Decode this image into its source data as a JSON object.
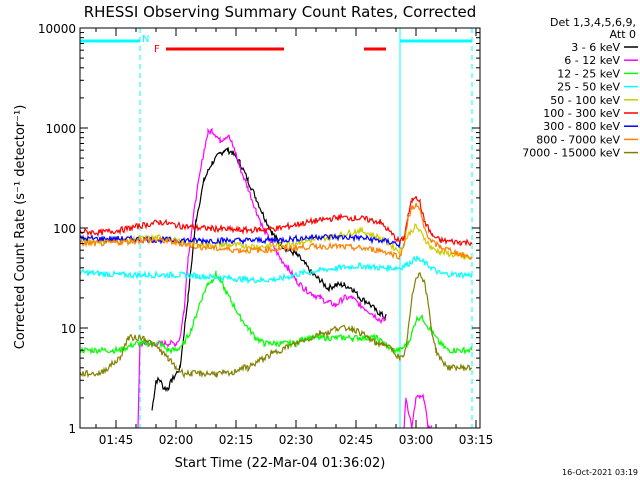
{
  "chart_data": {
    "type": "line",
    "title": "RHESSI Observing Summary Count Rates, Corrected",
    "xlabel": "Start Time (22-Mar-04 01:36:02)",
    "ylabel": "Corrected Count Rate (s⁻¹ detector⁻¹)",
    "ylog": true,
    "ylim": [
      1,
      10000
    ],
    "xlim_minutes": [
      0,
      100
    ],
    "x_unit": "minutes after 01:36:02",
    "xticks": [
      {
        "label": "01:45",
        "t": 9
      },
      {
        "label": "02:00",
        "t": 24
      },
      {
        "label": "02:15",
        "t": 39
      },
      {
        "label": "02:30",
        "t": 54
      },
      {
        "label": "02:45",
        "t": 69
      },
      {
        "label": "03:00",
        "t": 84
      },
      {
        "label": "03:15",
        "t": 99
      }
    ],
    "yticks": [
      {
        "label": "1",
        "v": 1
      },
      {
        "label": "10",
        "v": 10
      },
      {
        "label": "100",
        "v": 100
      },
      {
        "label": "1000",
        "v": 1000
      },
      {
        "label": "10000",
        "v": 10000
      }
    ],
    "legend": {
      "header": [
        "Det 1,3,4,5,6,9,",
        "Att 0"
      ],
      "placement": "right"
    },
    "series": [
      {
        "name": "3 - 6 keV",
        "color": "#000000",
        "x": [
          0,
          17,
          18,
          19,
          20,
          21,
          22,
          23,
          25,
          27,
          29,
          31,
          33,
          35,
          36,
          37,
          38,
          40,
          42,
          44,
          46,
          48,
          50,
          52,
          54,
          56,
          58,
          60,
          62,
          64,
          66,
          68,
          70,
          72,
          74,
          75,
          76,
          76.5
        ],
        "y": [
          null,
          null,
          1.5,
          3,
          3,
          2.5,
          2.5,
          3,
          4,
          20,
          120,
          300,
          450,
          550,
          600,
          600,
          570,
          450,
          300,
          200,
          130,
          90,
          70,
          60,
          55,
          45,
          35,
          30,
          25,
          27,
          27,
          25,
          20,
          18,
          15,
          14,
          13,
          13
        ]
      },
      {
        "name": "6 - 12 keV",
        "color": "#ff00ff",
        "x": [
          0,
          14,
          14.5,
          15,
          16,
          18,
          20,
          22,
          24,
          25,
          26,
          27,
          29,
          31,
          32,
          33,
          34,
          35,
          36,
          37,
          38,
          39,
          40,
          42,
          44,
          46,
          48,
          50,
          52,
          54,
          56,
          58,
          60,
          62,
          64,
          66,
          68,
          70,
          72,
          74,
          75,
          76,
          76.5,
          80,
          81,
          81.5,
          83,
          84,
          85,
          86,
          87,
          88,
          89,
          89.5
        ],
        "y": [
          null,
          null,
          1,
          7,
          7,
          7,
          7,
          7,
          7,
          8,
          15,
          50,
          200,
          600,
          900,
          950,
          850,
          750,
          800,
          850,
          700,
          550,
          400,
          250,
          150,
          95,
          70,
          50,
          40,
          30,
          25,
          22,
          20,
          18,
          17,
          20,
          20,
          17,
          15,
          13,
          12,
          12,
          12,
          null,
          1,
          2,
          1,
          2,
          2,
          2,
          1,
          1,
          null,
          null
        ]
      },
      {
        "name": "12 - 25 keV",
        "color": "#00ff00",
        "x": [
          0,
          5,
          10,
          14,
          16,
          18,
          20,
          22,
          24,
          26,
          28,
          30,
          32,
          33,
          34,
          35,
          36,
          38,
          40,
          42,
          44,
          46,
          48,
          50,
          52,
          54,
          56,
          58,
          60,
          62,
          64,
          66,
          68,
          70,
          72,
          74,
          76,
          78,
          80,
          82,
          83,
          84,
          85,
          86,
          88,
          90,
          92,
          94,
          96,
          98
        ],
        "y": [
          6,
          6,
          6,
          7,
          7,
          7,
          7,
          6,
          6,
          7,
          10,
          18,
          28,
          30,
          35,
          30,
          25,
          18,
          13,
          10,
          8,
          7,
          7,
          7,
          7,
          7,
          8,
          8,
          8,
          8,
          8,
          8,
          8,
          8,
          8,
          8,
          7,
          6,
          6,
          7,
          9,
          12,
          13,
          12,
          9,
          7,
          6,
          6,
          6,
          6
        ]
      },
      {
        "name": "25 - 50 keV",
        "color": "#00ffff",
        "x": [
          0,
          5,
          10,
          15,
          20,
          25,
          30,
          35,
          40,
          45,
          50,
          55,
          60,
          65,
          70,
          75,
          80,
          83,
          84,
          86,
          88,
          90,
          95,
          98
        ],
        "y": [
          36,
          35,
          34,
          34,
          34,
          34,
          33,
          32,
          31,
          30,
          31,
          35,
          38,
          40,
          42,
          40,
          40,
          46,
          50,
          45,
          40,
          35,
          34,
          34
        ]
      },
      {
        "name": "50 - 100 keV",
        "color": "#cccc00",
        "x": [
          0,
          5,
          10,
          15,
          20,
          25,
          30,
          35,
          40,
          45,
          50,
          55,
          60,
          65,
          70,
          75,
          80,
          82,
          84,
          86,
          88,
          90,
          95,
          98
        ],
        "y": [
          75,
          73,
          74,
          78,
          80,
          72,
          68,
          68,
          67,
          65,
          68,
          72,
          78,
          85,
          95,
          80,
          58,
          85,
          105,
          80,
          62,
          58,
          52,
          50
        ]
      },
      {
        "name": "100 - 300 keV",
        "color": "#ff0000",
        "x": [
          0,
          5,
          10,
          15,
          20,
          25,
          30,
          35,
          40,
          45,
          50,
          55,
          60,
          65,
          70,
          75,
          80,
          81,
          82,
          83,
          84,
          85,
          86,
          88,
          90,
          95,
          98
        ],
        "y": [
          92,
          90,
          95,
          105,
          115,
          105,
          100,
          98,
          95,
          96,
          100,
          110,
          120,
          128,
          125,
          115,
          72,
          80,
          130,
          190,
          215,
          180,
          120,
          85,
          75,
          72,
          72
        ]
      },
      {
        "name": "300 - 800 keV",
        "color": "#0000ff",
        "x": [
          0,
          10,
          20,
          30,
          40,
          50,
          60,
          70,
          78,
          80
        ],
        "y": [
          78,
          78,
          76,
          75,
          75,
          76,
          82,
          80,
          72,
          68
        ]
      },
      {
        "name": "800 - 7000 keV",
        "color": "#ff8000",
        "x": [
          0,
          5,
          10,
          15,
          20,
          25,
          30,
          35,
          40,
          45,
          50,
          55,
          60,
          65,
          70,
          75,
          80,
          81,
          82,
          83,
          84,
          85,
          86,
          88,
          90,
          95,
          98
        ],
        "y": [
          70,
          70,
          72,
          75,
          76,
          70,
          65,
          62,
          60,
          60,
          62,
          64,
          66,
          65,
          63,
          60,
          52,
          70,
          120,
          160,
          170,
          150,
          100,
          72,
          65,
          55,
          50
        ]
      },
      {
        "name": "7000 - 15000 keV",
        "color": "#808000",
        "x": [
          0,
          5,
          10,
          12,
          16,
          20,
          22,
          24,
          26,
          28,
          30,
          32,
          34,
          36,
          38,
          40,
          42,
          44,
          46,
          48,
          50,
          52,
          54,
          56,
          58,
          60,
          62,
          64,
          66,
          68,
          70,
          72,
          74,
          76,
          78,
          80,
          81,
          82,
          83,
          84,
          85,
          86,
          87,
          88,
          89,
          90,
          92,
          94,
          96,
          98
        ],
        "y": [
          3.5,
          3.5,
          5,
          8,
          8,
          6,
          5,
          4,
          3.5,
          3.5,
          3.5,
          3.5,
          3.5,
          3.5,
          3.5,
          4,
          4,
          4.5,
          5,
          5.5,
          6,
          6.5,
          7,
          7.5,
          8,
          9,
          9,
          10,
          10,
          10,
          9,
          8,
          7,
          7,
          6,
          5,
          5,
          9,
          20,
          33,
          35,
          30,
          18,
          9,
          6,
          5,
          4,
          4,
          4,
          4
        ]
      }
    ],
    "annotations": {
      "night_bars": [
        {
          "from": 0,
          "to": 15,
          "label": "N",
          "color": "#00ffff"
        },
        {
          "from": 80,
          "to": 98,
          "color": "#00ffff"
        }
      ],
      "flare_bars": [
        {
          "from": 21.5,
          "to": 51,
          "label": "F",
          "color": "#ff0000"
        },
        {
          "from": 71,
          "to": 76.5,
          "color": "#ff0000"
        }
      ],
      "dashed_verticals": [
        15,
        98
      ],
      "solid_verticals": [
        0,
        80
      ]
    },
    "footer_date": "16-Oct-2021 03:19"
  }
}
